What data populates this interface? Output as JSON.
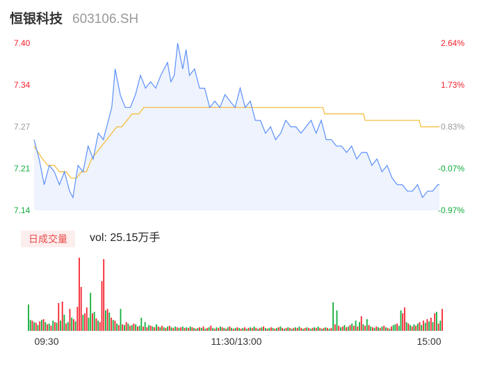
{
  "stock": {
    "name": "恒银科技",
    "code": "603106.SH"
  },
  "volume_badge": "日成交量",
  "volume_text": "vol: 25.15万手",
  "colors": {
    "price_line": "#5b8ff9",
    "avg_line": "#f5b82e",
    "up": "#f5222d",
    "down": "#0fad3a",
    "neutral": "#999999",
    "area": "#eef3fd"
  },
  "chart_data": {
    "type": "line",
    "price_axis": {
      "ylim": [
        7.14,
        7.4
      ],
      "ticks": [
        {
          "price": "7.40",
          "pct": "2.64%",
          "tone": "up"
        },
        {
          "price": "7.34",
          "pct": "1.73%",
          "tone": "up"
        },
        {
          "price": "7.27",
          "pct": "0.83%",
          "tone": "neutral"
        },
        {
          "price": "7.21",
          "pct": "-0.07%",
          "tone": "down"
        },
        {
          "price": "7.14",
          "pct": "-0.97%",
          "tone": "down"
        }
      ]
    },
    "x_tick_labels": [
      "09:30",
      "11:30/13:00",
      "15:00"
    ],
    "minutes": 241,
    "price_keypoints": [
      [
        0,
        7.25
      ],
      [
        3,
        7.22
      ],
      [
        6,
        7.18
      ],
      [
        9,
        7.21
      ],
      [
        12,
        7.2
      ],
      [
        15,
        7.18
      ],
      [
        18,
        7.2
      ],
      [
        21,
        7.17
      ],
      [
        23,
        7.16
      ],
      [
        26,
        7.21
      ],
      [
        29,
        7.2
      ],
      [
        32,
        7.24
      ],
      [
        35,
        7.22
      ],
      [
        38,
        7.26
      ],
      [
        41,
        7.25
      ],
      [
        44,
        7.28
      ],
      [
        46,
        7.3
      ],
      [
        48,
        7.36
      ],
      [
        51,
        7.32
      ],
      [
        54,
        7.3
      ],
      [
        57,
        7.3
      ],
      [
        60,
        7.32
      ],
      [
        63,
        7.35
      ],
      [
        66,
        7.33
      ],
      [
        69,
        7.34
      ],
      [
        72,
        7.33
      ],
      [
        75,
        7.35
      ],
      [
        77,
        7.36
      ],
      [
        79,
        7.37
      ],
      [
        81,
        7.34
      ],
      [
        83,
        7.35
      ],
      [
        85,
        7.4
      ],
      [
        88,
        7.36
      ],
      [
        90,
        7.39
      ],
      [
        92,
        7.35
      ],
      [
        95,
        7.36
      ],
      [
        98,
        7.33
      ],
      [
        101,
        7.33
      ],
      [
        104,
        7.3
      ],
      [
        107,
        7.31
      ],
      [
        110,
        7.3
      ],
      [
        113,
        7.32
      ],
      [
        116,
        7.31
      ],
      [
        119,
        7.3
      ],
      [
        122,
        7.33
      ],
      [
        125,
        7.3
      ],
      [
        128,
        7.31
      ],
      [
        131,
        7.28
      ],
      [
        134,
        7.28
      ],
      [
        137,
        7.26
      ],
      [
        140,
        7.27
      ],
      [
        143,
        7.25
      ],
      [
        146,
        7.26
      ],
      [
        149,
        7.28
      ],
      [
        152,
        7.27
      ],
      [
        155,
        7.27
      ],
      [
        158,
        7.26
      ],
      [
        161,
        7.27
      ],
      [
        164,
        7.28
      ],
      [
        167,
        7.26
      ],
      [
        170,
        7.28
      ],
      [
        173,
        7.25
      ],
      [
        176,
        7.25
      ],
      [
        179,
        7.24
      ],
      [
        182,
        7.24
      ],
      [
        185,
        7.23
      ],
      [
        188,
        7.24
      ],
      [
        191,
        7.22
      ],
      [
        194,
        7.23
      ],
      [
        197,
        7.23
      ],
      [
        200,
        7.21
      ],
      [
        203,
        7.22
      ],
      [
        206,
        7.2
      ],
      [
        209,
        7.21
      ],
      [
        212,
        7.19
      ],
      [
        215,
        7.18
      ],
      [
        218,
        7.18
      ],
      [
        221,
        7.17
      ],
      [
        224,
        7.17
      ],
      [
        227,
        7.18
      ],
      [
        230,
        7.16
      ],
      [
        233,
        7.17
      ],
      [
        236,
        7.17
      ],
      [
        239,
        7.18
      ],
      [
        240,
        7.18
      ]
    ],
    "avg_keypoints": [
      [
        0,
        7.24
      ],
      [
        5,
        7.22
      ],
      [
        8,
        7.21
      ],
      [
        12,
        7.21
      ],
      [
        15,
        7.2
      ],
      [
        19,
        7.2
      ],
      [
        22,
        7.19
      ],
      [
        25,
        7.19
      ],
      [
        28,
        7.2
      ],
      [
        31,
        7.2
      ],
      [
        34,
        7.22
      ],
      [
        37,
        7.23
      ],
      [
        40,
        7.24
      ],
      [
        43,
        7.25
      ],
      [
        46,
        7.26
      ],
      [
        49,
        7.27
      ],
      [
        52,
        7.27
      ],
      [
        55,
        7.28
      ],
      [
        58,
        7.29
      ],
      [
        62,
        7.29
      ],
      [
        65,
        7.3
      ],
      [
        75,
        7.3
      ],
      [
        90,
        7.3
      ],
      [
        110,
        7.3
      ],
      [
        130,
        7.3
      ],
      [
        155,
        7.3
      ],
      [
        171,
        7.3
      ],
      [
        172,
        7.29
      ],
      [
        190,
        7.29
      ],
      [
        195,
        7.29
      ],
      [
        196,
        7.28
      ],
      [
        215,
        7.28
      ],
      [
        228,
        7.28
      ],
      [
        229,
        7.27
      ],
      [
        240,
        7.27
      ]
    ],
    "volume": {
      "ymax": 100,
      "bars": [
        {
          "v": 36,
          "d": "down"
        },
        {
          "v": 15,
          "d": "down"
        },
        {
          "v": 14,
          "d": "up"
        },
        {
          "v": 12,
          "d": "down"
        },
        {
          "v": 11,
          "d": "up"
        },
        {
          "v": 8,
          "d": "down"
        },
        {
          "v": 13,
          "d": "up"
        },
        {
          "v": 15,
          "d": "down"
        },
        {
          "v": 16,
          "d": "up"
        },
        {
          "v": 12,
          "d": "down"
        },
        {
          "v": 9,
          "d": "up"
        },
        {
          "v": 10,
          "d": "down"
        },
        {
          "v": 7,
          "d": "up"
        },
        {
          "v": 14,
          "d": "down"
        },
        {
          "v": 12,
          "d": "up"
        },
        {
          "v": 11,
          "d": "down"
        },
        {
          "v": 38,
          "d": "up"
        },
        {
          "v": 14,
          "d": "down"
        },
        {
          "v": 40,
          "d": "up"
        },
        {
          "v": 22,
          "d": "down"
        },
        {
          "v": 10,
          "d": "up"
        },
        {
          "v": 12,
          "d": "down"
        },
        {
          "v": 30,
          "d": "up"
        },
        {
          "v": 18,
          "d": "down"
        },
        {
          "v": 16,
          "d": "up"
        },
        {
          "v": 13,
          "d": "down"
        },
        {
          "v": 33,
          "d": "up"
        },
        {
          "v": 100,
          "d": "up"
        },
        {
          "v": 60,
          "d": "up"
        },
        {
          "v": 22,
          "d": "down"
        },
        {
          "v": 24,
          "d": "up"
        },
        {
          "v": 32,
          "d": "up"
        },
        {
          "v": 18,
          "d": "down"
        },
        {
          "v": 52,
          "d": "down"
        },
        {
          "v": 24,
          "d": "up"
        },
        {
          "v": 26,
          "d": "down"
        },
        {
          "v": 17,
          "d": "up"
        },
        {
          "v": 14,
          "d": "down"
        },
        {
          "v": 12,
          "d": "up"
        },
        {
          "v": 68,
          "d": "up"
        },
        {
          "v": 98,
          "d": "up"
        },
        {
          "v": 28,
          "d": "down"
        },
        {
          "v": 30,
          "d": "up"
        },
        {
          "v": 25,
          "d": "down"
        },
        {
          "v": 18,
          "d": "up"
        },
        {
          "v": 15,
          "d": "down"
        },
        {
          "v": 14,
          "d": "up"
        },
        {
          "v": 10,
          "d": "down"
        },
        {
          "v": 8,
          "d": "up"
        },
        {
          "v": 30,
          "d": "down"
        },
        {
          "v": 9,
          "d": "up"
        },
        {
          "v": 8,
          "d": "down"
        },
        {
          "v": 12,
          "d": "up"
        },
        {
          "v": 10,
          "d": "down"
        },
        {
          "v": 7,
          "d": "up"
        },
        {
          "v": 8,
          "d": "down"
        },
        {
          "v": 10,
          "d": "up"
        },
        {
          "v": 9,
          "d": "down"
        },
        {
          "v": 6,
          "d": "up"
        },
        {
          "v": 7,
          "d": "down"
        },
        {
          "v": 18,
          "d": "down"
        },
        {
          "v": 6,
          "d": "up"
        },
        {
          "v": 12,
          "d": "down"
        },
        {
          "v": 5,
          "d": "up"
        },
        {
          "v": 8,
          "d": "down"
        },
        {
          "v": 7,
          "d": "up"
        },
        {
          "v": 6,
          "d": "down"
        },
        {
          "v": 5,
          "d": "up"
        },
        {
          "v": 9,
          "d": "down"
        },
        {
          "v": 6,
          "d": "up"
        },
        {
          "v": 5,
          "d": "down"
        },
        {
          "v": 7,
          "d": "up"
        },
        {
          "v": 5,
          "d": "down"
        },
        {
          "v": 4,
          "d": "up"
        },
        {
          "v": 6,
          "d": "down"
        },
        {
          "v": 7,
          "d": "up"
        },
        {
          "v": 5,
          "d": "down"
        },
        {
          "v": 4,
          "d": "up"
        },
        {
          "v": 6,
          "d": "down"
        },
        {
          "v": 5,
          "d": "up"
        },
        {
          "v": 4,
          "d": "down"
        },
        {
          "v": 5,
          "d": "up"
        },
        {
          "v": 6,
          "d": "down"
        },
        {
          "v": 4,
          "d": "up"
        },
        {
          "v": 5,
          "d": "down"
        },
        {
          "v": 4,
          "d": "up"
        },
        {
          "v": 6,
          "d": "down"
        },
        {
          "v": 5,
          "d": "up"
        },
        {
          "v": 4,
          "d": "down"
        },
        {
          "v": 3,
          "d": "up"
        },
        {
          "v": 4,
          "d": "down"
        },
        {
          "v": 5,
          "d": "up"
        },
        {
          "v": 4,
          "d": "down"
        },
        {
          "v": 6,
          "d": "up"
        },
        {
          "v": 3,
          "d": "down"
        },
        {
          "v": 4,
          "d": "up"
        },
        {
          "v": 5,
          "d": "down"
        },
        {
          "v": 7,
          "d": "up"
        },
        {
          "v": 4,
          "d": "down"
        },
        {
          "v": 3,
          "d": "up"
        },
        {
          "v": 5,
          "d": "down"
        },
        {
          "v": 4,
          "d": "up"
        },
        {
          "v": 6,
          "d": "down"
        },
        {
          "v": 5,
          "d": "up"
        },
        {
          "v": 4,
          "d": "down"
        },
        {
          "v": 3,
          "d": "up"
        },
        {
          "v": 5,
          "d": "down"
        },
        {
          "v": 6,
          "d": "up"
        },
        {
          "v": 4,
          "d": "down"
        },
        {
          "v": 3,
          "d": "up"
        },
        {
          "v": 4,
          "d": "down"
        },
        {
          "v": 5,
          "d": "up"
        },
        {
          "v": 4,
          "d": "down"
        },
        {
          "v": 3,
          "d": "up"
        },
        {
          "v": 4,
          "d": "down"
        },
        {
          "v": 5,
          "d": "up"
        },
        {
          "v": 3,
          "d": "down"
        },
        {
          "v": 4,
          "d": "up"
        },
        {
          "v": 5,
          "d": "down"
        },
        {
          "v": 4,
          "d": "up"
        },
        {
          "v": 6,
          "d": "down"
        },
        {
          "v": 4,
          "d": "up"
        },
        {
          "v": 3,
          "d": "down"
        },
        {
          "v": 4,
          "d": "up"
        },
        {
          "v": 5,
          "d": "down"
        },
        {
          "v": 6,
          "d": "up"
        },
        {
          "v": 4,
          "d": "down"
        },
        {
          "v": 3,
          "d": "up"
        },
        {
          "v": 4,
          "d": "down"
        },
        {
          "v": 5,
          "d": "up"
        },
        {
          "v": 4,
          "d": "down"
        },
        {
          "v": 3,
          "d": "up"
        },
        {
          "v": 4,
          "d": "down"
        },
        {
          "v": 5,
          "d": "up"
        },
        {
          "v": 6,
          "d": "down"
        },
        {
          "v": 4,
          "d": "up"
        },
        {
          "v": 3,
          "d": "down"
        },
        {
          "v": 4,
          "d": "up"
        },
        {
          "v": 5,
          "d": "down"
        },
        {
          "v": 4,
          "d": "up"
        },
        {
          "v": 3,
          "d": "down"
        },
        {
          "v": 4,
          "d": "up"
        },
        {
          "v": 5,
          "d": "down"
        },
        {
          "v": 4,
          "d": "up"
        },
        {
          "v": 6,
          "d": "down"
        },
        {
          "v": 4,
          "d": "up"
        },
        {
          "v": 3,
          "d": "down"
        },
        {
          "v": 4,
          "d": "up"
        },
        {
          "v": 5,
          "d": "down"
        },
        {
          "v": 4,
          "d": "up"
        },
        {
          "v": 3,
          "d": "down"
        },
        {
          "v": 4,
          "d": "up"
        },
        {
          "v": 5,
          "d": "down"
        },
        {
          "v": 4,
          "d": "up"
        },
        {
          "v": 6,
          "d": "down"
        },
        {
          "v": 4,
          "d": "up"
        },
        {
          "v": 3,
          "d": "down"
        },
        {
          "v": 4,
          "d": "up"
        },
        {
          "v": 5,
          "d": "down"
        },
        {
          "v": 4,
          "d": "up"
        },
        {
          "v": 3,
          "d": "down"
        },
        {
          "v": 4,
          "d": "up"
        },
        {
          "v": 39,
          "d": "down"
        },
        {
          "v": 9,
          "d": "up"
        },
        {
          "v": 28,
          "d": "down"
        },
        {
          "v": 7,
          "d": "up"
        },
        {
          "v": 5,
          "d": "down"
        },
        {
          "v": 6,
          "d": "up"
        },
        {
          "v": 8,
          "d": "down"
        },
        {
          "v": 5,
          "d": "up"
        },
        {
          "v": 6,
          "d": "down"
        },
        {
          "v": 8,
          "d": "up"
        },
        {
          "v": 10,
          "d": "down"
        },
        {
          "v": 7,
          "d": "up"
        },
        {
          "v": 14,
          "d": "down"
        },
        {
          "v": 6,
          "d": "up"
        },
        {
          "v": 12,
          "d": "down"
        },
        {
          "v": 20,
          "d": "up"
        },
        {
          "v": 9,
          "d": "down"
        },
        {
          "v": 7,
          "d": "up"
        },
        {
          "v": 16,
          "d": "down"
        },
        {
          "v": 8,
          "d": "up"
        },
        {
          "v": 6,
          "d": "down"
        },
        {
          "v": 5,
          "d": "up"
        },
        {
          "v": 4,
          "d": "down"
        },
        {
          "v": 6,
          "d": "up"
        },
        {
          "v": 5,
          "d": "down"
        },
        {
          "v": 4,
          "d": "up"
        },
        {
          "v": 6,
          "d": "down"
        },
        {
          "v": 7,
          "d": "up"
        },
        {
          "v": 5,
          "d": "down"
        },
        {
          "v": 4,
          "d": "up"
        },
        {
          "v": 3,
          "d": "down"
        },
        {
          "v": 6,
          "d": "up"
        },
        {
          "v": 8,
          "d": "down"
        },
        {
          "v": 9,
          "d": "down"
        },
        {
          "v": 10,
          "d": "up"
        },
        {
          "v": 7,
          "d": "down"
        },
        {
          "v": 28,
          "d": "down"
        },
        {
          "v": 24,
          "d": "up"
        },
        {
          "v": 32,
          "d": "up"
        },
        {
          "v": 12,
          "d": "down"
        },
        {
          "v": 10,
          "d": "up"
        },
        {
          "v": 8,
          "d": "down"
        },
        {
          "v": 6,
          "d": "up"
        },
        {
          "v": 9,
          "d": "down"
        },
        {
          "v": 7,
          "d": "up"
        },
        {
          "v": 10,
          "d": "down"
        },
        {
          "v": 12,
          "d": "up"
        },
        {
          "v": 8,
          "d": "down"
        },
        {
          "v": 14,
          "d": "up"
        },
        {
          "v": 11,
          "d": "down"
        },
        {
          "v": 16,
          "d": "up"
        },
        {
          "v": 13,
          "d": "down"
        },
        {
          "v": 18,
          "d": "up"
        },
        {
          "v": 12,
          "d": "down"
        },
        {
          "v": 24,
          "d": "up"
        },
        {
          "v": 26,
          "d": "down"
        },
        {
          "v": 10,
          "d": "up"
        },
        {
          "v": 14,
          "d": "down"
        },
        {
          "v": 30,
          "d": "up"
        }
      ]
    }
  }
}
